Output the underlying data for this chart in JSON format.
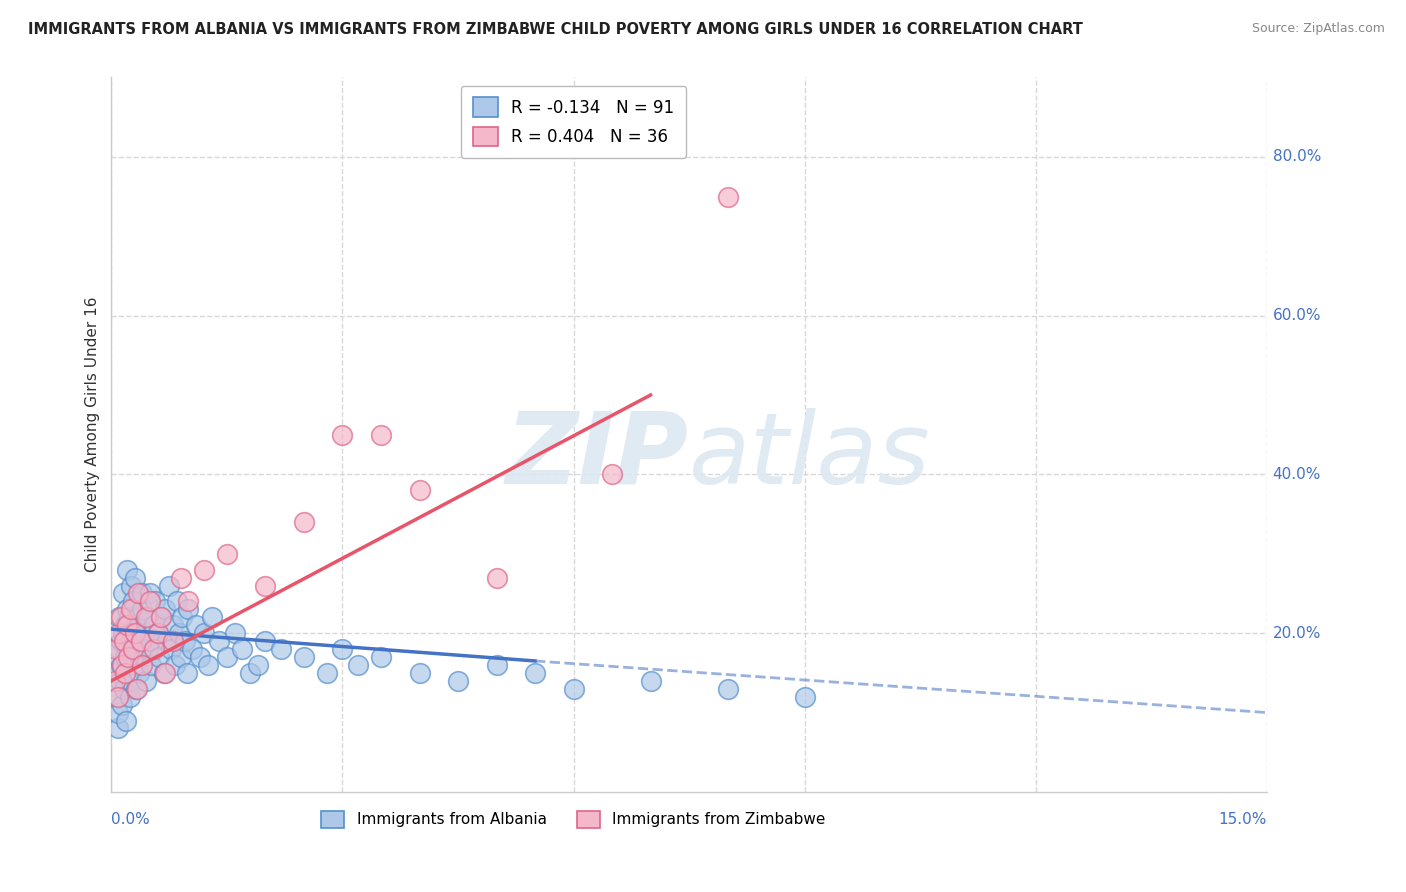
{
  "title": "IMMIGRANTS FROM ALBANIA VS IMMIGRANTS FROM ZIMBABWE CHILD POVERTY AMONG GIRLS UNDER 16 CORRELATION CHART",
  "source": "Source: ZipAtlas.com",
  "ylabel": "Child Poverty Among Girls Under 16",
  "xlim": [
    0.0,
    15.0
  ],
  "ylim": [
    0.0,
    90.0
  ],
  "ytick_positions": [
    20,
    40,
    60,
    80
  ],
  "ytick_labels": [
    "20.0%",
    "40.0%",
    "60.0%",
    "80.0%"
  ],
  "albania_R": -0.134,
  "albania_N": 91,
  "zimbabwe_R": 0.404,
  "zimbabwe_N": 36,
  "albania_color": "#adc8e8",
  "zimbabwe_color": "#f5b8cb",
  "albania_line_color": "#4472c4",
  "zimbabwe_line_color": "#e8546a",
  "albania_edge_color": "#5590cc",
  "zimbabwe_edge_color": "#dd6688",
  "background_color": "#ffffff",
  "grid_color": "#d8d8d8",
  "watermark_color": "#dde8f2",
  "albania_scatter_x": [
    0.05,
    0.07,
    0.08,
    0.09,
    0.1,
    0.1,
    0.11,
    0.12,
    0.13,
    0.14,
    0.15,
    0.15,
    0.16,
    0.17,
    0.18,
    0.19,
    0.2,
    0.2,
    0.21,
    0.22,
    0.23,
    0.24,
    0.25,
    0.25,
    0.26,
    0.27,
    0.28,
    0.29,
    0.3,
    0.3,
    0.32,
    0.34,
    0.35,
    0.36,
    0.38,
    0.4,
    0.4,
    0.42,
    0.44,
    0.45,
    0.47,
    0.48,
    0.5,
    0.5,
    0.52,
    0.55,
    0.57,
    0.6,
    0.62,
    0.65,
    0.68,
    0.7,
    0.72,
    0.75,
    0.78,
    0.8,
    0.82,
    0.85,
    0.88,
    0.9,
    0.92,
    0.95,
    0.98,
    1.0,
    1.05,
    1.1,
    1.15,
    1.2,
    1.25,
    1.3,
    1.4,
    1.5,
    1.6,
    1.7,
    1.8,
    1.9,
    2.0,
    2.2,
    2.5,
    2.8,
    3.0,
    3.2,
    3.5,
    4.0,
    4.5,
    5.0,
    5.5,
    6.0,
    7.0,
    8.0,
    9.0
  ],
  "albania_scatter_y": [
    15,
    12,
    8,
    10,
    18,
    22,
    14,
    16,
    19,
    11,
    20,
    25,
    13,
    17,
    21,
    9,
    23,
    28,
    15,
    18,
    22,
    12,
    26,
    19,
    14,
    20,
    24,
    16,
    21,
    27,
    13,
    18,
    22,
    15,
    19,
    23,
    25,
    17,
    20,
    14,
    22,
    18,
    25,
    19,
    16,
    21,
    24,
    20,
    17,
    22,
    15,
    23,
    19,
    26,
    18,
    21,
    16,
    24,
    20,
    17,
    22,
    19,
    15,
    23,
    18,
    21,
    17,
    20,
    16,
    22,
    19,
    17,
    20,
    18,
    15,
    16,
    19,
    18,
    17,
    15,
    18,
    16,
    17,
    15,
    14,
    16,
    15,
    13,
    14,
    13,
    12
  ],
  "zimbabwe_scatter_x": [
    0.05,
    0.06,
    0.08,
    0.1,
    0.12,
    0.14,
    0.16,
    0.18,
    0.2,
    0.22,
    0.25,
    0.28,
    0.3,
    0.33,
    0.35,
    0.38,
    0.4,
    0.45,
    0.5,
    0.55,
    0.6,
    0.65,
    0.7,
    0.8,
    0.9,
    1.0,
    1.2,
    1.5,
    2.0,
    2.5,
    3.0,
    3.5,
    4.0,
    5.0,
    6.5,
    8.0
  ],
  "zimbabwe_scatter_y": [
    14,
    18,
    12,
    20,
    22,
    16,
    19,
    15,
    21,
    17,
    23,
    18,
    20,
    13,
    25,
    19,
    16,
    22,
    24,
    18,
    20,
    22,
    15,
    19,
    27,
    24,
    28,
    30,
    26,
    34,
    45,
    45,
    38,
    27,
    40,
    75
  ],
  "alb_trend_x0": 0.0,
  "alb_trend_y0": 20.5,
  "alb_trend_x1": 5.5,
  "alb_trend_y1": 16.5,
  "alb_dash_x0": 5.5,
  "alb_dash_y0": 16.5,
  "alb_dash_x1": 15.0,
  "alb_dash_y1": 10.0,
  "zim_trend_x0": 0.0,
  "zim_trend_y0": 14.0,
  "zim_trend_x1": 7.0,
  "zim_trend_y1": 50.0
}
